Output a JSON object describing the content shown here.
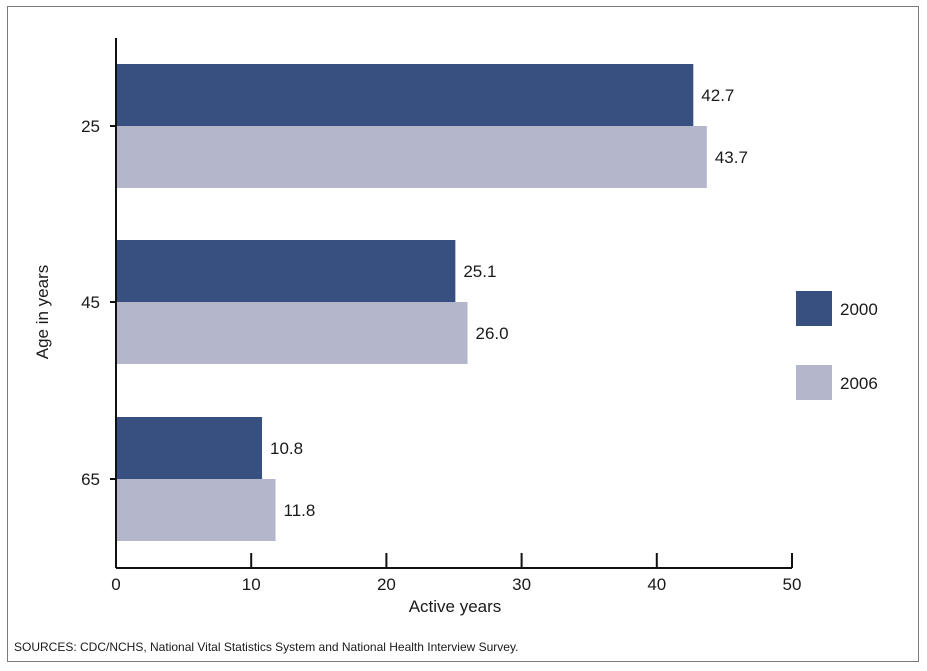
{
  "chart_data": {
    "type": "bar",
    "orientation": "horizontal",
    "categories": [
      "25",
      "45",
      "65"
    ],
    "series": [
      {
        "name": "2000",
        "values": [
          42.7,
          25.1,
          10.8
        ],
        "color": "#37507f"
      },
      {
        "name": "2006",
        "values": [
          43.7,
          26.0,
          11.8
        ],
        "color": "#b4b6cc"
      }
    ],
    "data_labels": [
      [
        "42.7",
        "25.1",
        "10.8"
      ],
      [
        "43.7",
        "26.0",
        "11.8"
      ]
    ],
    "xlabel": "Active years",
    "ylabel": "Age in years",
    "xlim": [
      0,
      50
    ],
    "xticks": [
      "0",
      "10",
      "20",
      "30",
      "40",
      "50"
    ],
    "grid": false,
    "legend_position": "right"
  },
  "source_note": "SOURCES: CDC/NCHS, National Vital Statistics System and National Health Interview Survey."
}
